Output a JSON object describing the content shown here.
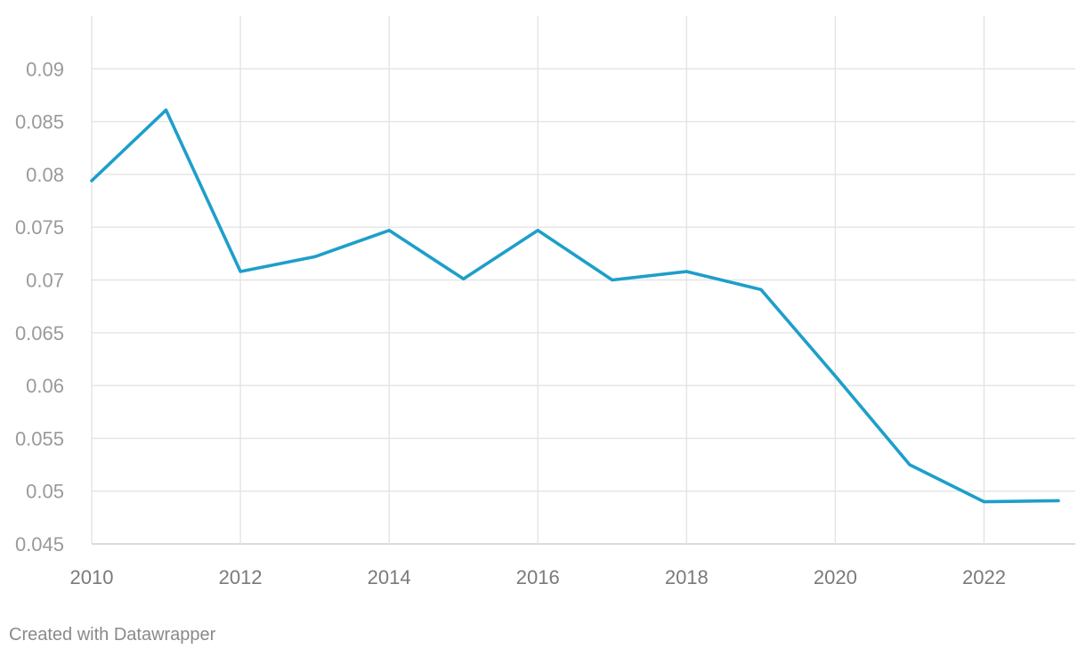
{
  "credit": "Created with Datawrapper",
  "chart_data": {
    "type": "line",
    "title": "",
    "xlabel": "",
    "ylabel": "",
    "x": [
      2010,
      2011,
      2012,
      2013,
      2014,
      2015,
      2016,
      2017,
      2018,
      2019,
      2020,
      2021,
      2022,
      2023
    ],
    "series": [
      {
        "values": [
          0.0794,
          0.0861,
          0.0708,
          0.0722,
          0.0747,
          0.0701,
          0.0747,
          0.07,
          0.0708,
          0.0691,
          0.0609,
          0.0525,
          0.049,
          0.0491
        ],
        "color": "#1d9fc9"
      }
    ],
    "xlim": [
      2010,
      2023
    ],
    "ylim": [
      0.045,
      0.095
    ],
    "yticks": [
      0.045,
      0.05,
      0.055,
      0.06,
      0.065,
      0.07,
      0.075,
      0.08,
      0.085,
      0.09
    ],
    "ytick_labels": [
      "0.045",
      "0.05",
      "0.055",
      "0.06",
      "0.065",
      "0.07",
      "0.075",
      "0.08",
      "0.085",
      "0.09"
    ],
    "xticks": [
      2010,
      2012,
      2014,
      2016,
      2018,
      2020,
      2022
    ],
    "xtick_labels": [
      "2010",
      "2012",
      "2014",
      "2016",
      "2018",
      "2020",
      "2022"
    ],
    "grid": true,
    "legend": "none"
  }
}
